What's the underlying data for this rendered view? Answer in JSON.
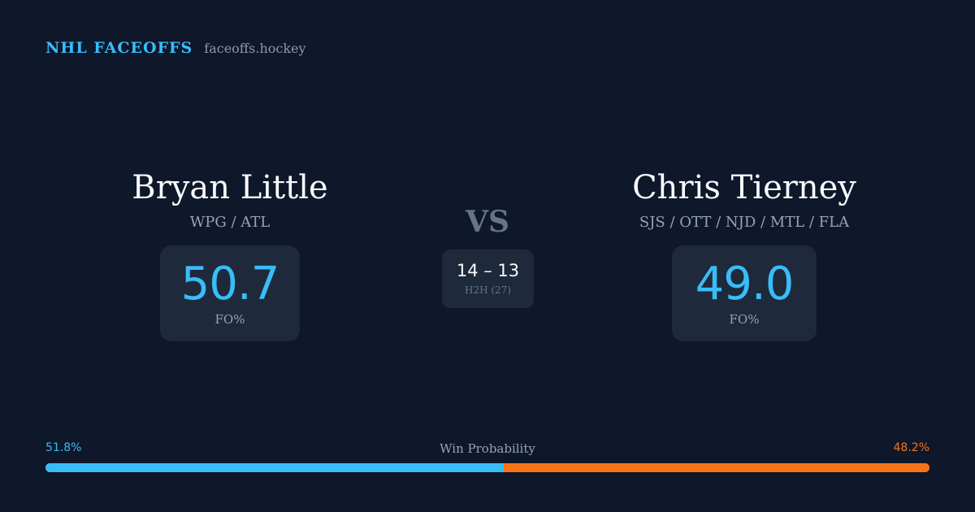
{
  "brand": {
    "title": "NHL FACEOFFS",
    "site": "faceoffs.hockey"
  },
  "player_left": {
    "name": "Bryan Little",
    "teams": "WPG / ATL",
    "fo_value": "50.7",
    "fo_label": "FO%"
  },
  "player_right": {
    "name": "Chris Tierney",
    "teams": "SJS / OTT / NJD / MTL / FLA",
    "fo_value": "49.0",
    "fo_label": "FO%"
  },
  "versus": {
    "label": "VS",
    "h2h_score": "14 – 13",
    "h2h_label": "H2H (27)"
  },
  "win_probability": {
    "title": "Win Probability",
    "left_label": "51.8%",
    "right_label": "48.2%",
    "left_value": 51.8,
    "right_value": 48.2
  },
  "colors": {
    "background": "#0f172a",
    "card": "#1e293b",
    "accent_left": "#38bdf8",
    "accent_right": "#f97316",
    "muted": "#94a3b8"
  }
}
